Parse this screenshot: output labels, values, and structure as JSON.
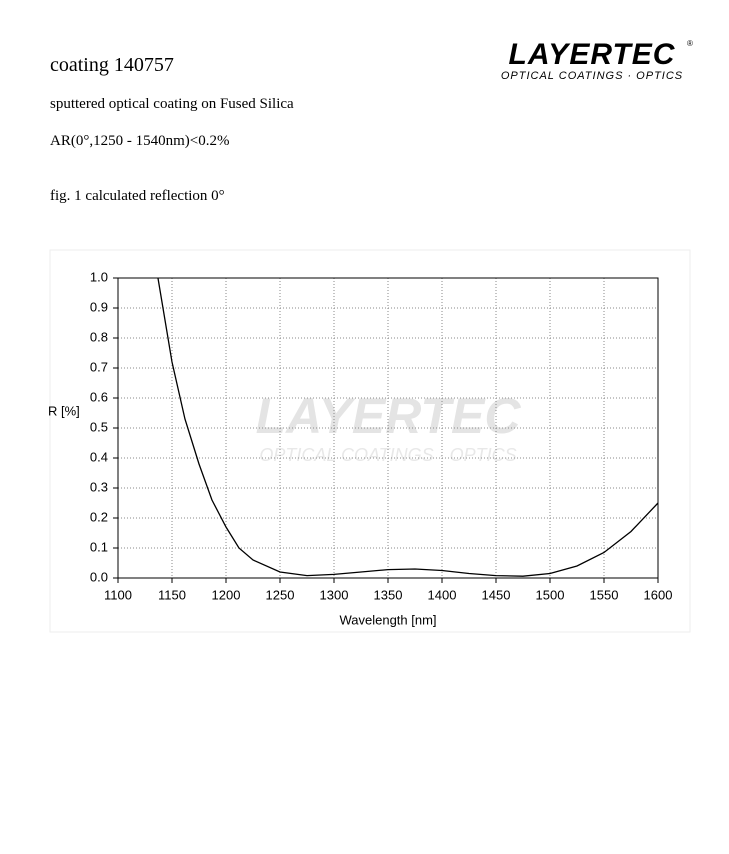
{
  "header": {
    "title": "coating 140757",
    "description": "sputtered optical coating on Fused Silica",
    "spec": "AR(0°,1250 - 1540nm)<0.2%",
    "figure_caption": "fig. 1 calculated reflection 0°"
  },
  "logo": {
    "brand": "LAYERTEC",
    "mark": "®",
    "tagline": "OPTICAL COATINGS · OPTICS"
  },
  "chart_data": {
    "type": "line",
    "x_label": "Wavelength [nm]",
    "y_label": "R [%]",
    "x": [
      1137,
      1150,
      1162,
      1175,
      1187,
      1200,
      1212,
      1225,
      1250,
      1275,
      1300,
      1325,
      1350,
      1375,
      1400,
      1425,
      1450,
      1475,
      1500,
      1525,
      1550,
      1575,
      1600
    ],
    "series": [
      {
        "color": "#000000",
        "values": [
          1.0,
          0.72,
          0.53,
          0.38,
          0.26,
          0.17,
          0.1,
          0.06,
          0.02,
          0.008,
          0.012,
          0.02,
          0.028,
          0.03,
          0.025,
          0.015,
          0.008,
          0.006,
          0.015,
          0.04,
          0.085,
          0.155,
          0.25
        ]
      }
    ],
    "xlim": [
      1100,
      1600
    ],
    "ylim": [
      0,
      1
    ],
    "xticks": [
      1100,
      1150,
      1200,
      1250,
      1300,
      1350,
      1400,
      1450,
      1500,
      1550,
      1600
    ],
    "yticks": [
      {
        "value": 0,
        "label": "0.0"
      },
      0.1,
      0.2,
      0.3,
      0.4,
      0.5,
      0.6,
      0.7,
      0.8,
      0.9,
      {
        "value": 1,
        "label": "1.0"
      }
    ],
    "grid": true
  }
}
